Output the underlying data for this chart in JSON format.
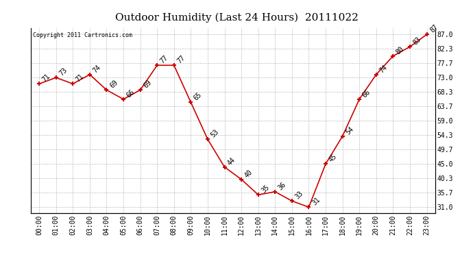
{
  "title": "Outdoor Humidity (Last 24 Hours)  20111022",
  "copyright": "Copyright 2011 Cartronics.com",
  "x_labels": [
    "00:00",
    "01:00",
    "02:00",
    "03:00",
    "04:00",
    "05:00",
    "06:00",
    "07:00",
    "08:00",
    "09:00",
    "10:00",
    "11:00",
    "12:00",
    "13:00",
    "14:00",
    "15:00",
    "16:00",
    "17:00",
    "18:00",
    "19:00",
    "20:00",
    "21:00",
    "22:00",
    "23:00"
  ],
  "y_values": [
    71,
    73,
    71,
    74,
    69,
    66,
    69,
    77,
    77,
    65,
    53,
    44,
    40,
    35,
    36,
    33,
    31,
    45,
    54,
    66,
    74,
    80,
    83,
    87
  ],
  "line_color": "#cc0000",
  "marker_color": "#cc0000",
  "bg_color": "#ffffff",
  "grid_color": "#bbbbbb",
  "yticks": [
    31.0,
    35.7,
    40.3,
    45.0,
    49.7,
    54.3,
    59.0,
    63.7,
    68.3,
    73.0,
    77.7,
    82.3,
    87.0
  ],
  "ylim": [
    29.0,
    89.0
  ],
  "title_fontsize": 11,
  "label_fontsize": 7,
  "annotation_fontsize": 7,
  "copyright_fontsize": 6
}
